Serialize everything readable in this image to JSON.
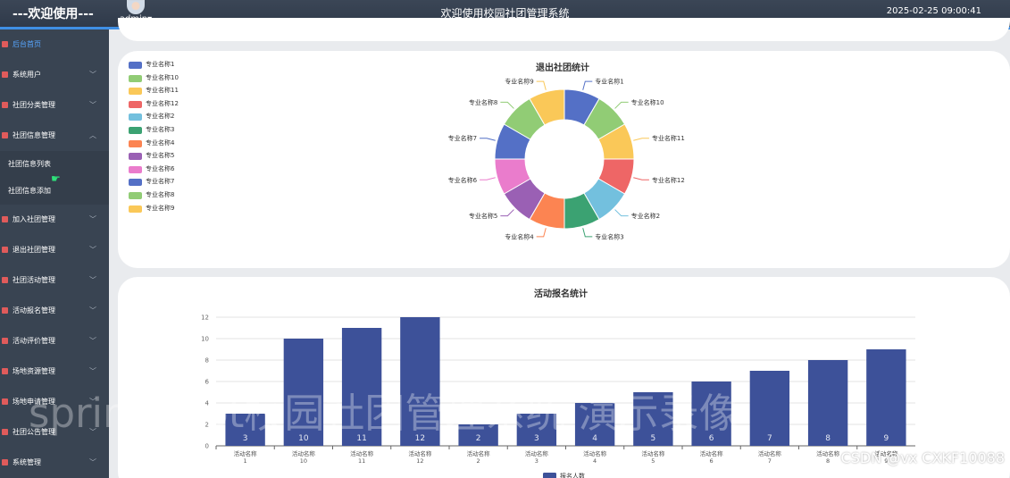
{
  "app": {
    "brand": "---欢迎使用---",
    "user": "admin",
    "title": "欢迎使用校园社团管理系统",
    "datetime": "2025-02-25 09:00:41"
  },
  "sidebar": {
    "items": [
      {
        "label": "后台首页",
        "has_children": false,
        "active": true
      },
      {
        "label": "系统用户",
        "has_children": true
      },
      {
        "label": "社团分类管理",
        "has_children": true
      },
      {
        "label": "社团信息管理",
        "has_children": true,
        "expanded": true,
        "children": [
          {
            "label": "社团信息列表"
          },
          {
            "label": "社团信息添加"
          }
        ]
      },
      {
        "label": "加入社团管理",
        "has_children": true
      },
      {
        "label": "退出社团管理",
        "has_children": true
      },
      {
        "label": "社团活动管理",
        "has_children": true
      },
      {
        "label": "活动报名管理",
        "has_children": true
      },
      {
        "label": "活动评价管理",
        "has_children": true
      },
      {
        "label": "场地资源管理",
        "has_children": true
      },
      {
        "label": "场地申请管理",
        "has_children": true
      },
      {
        "label": "社团公告管理",
        "has_children": true
      },
      {
        "label": "系统管理",
        "has_children": true
      }
    ]
  },
  "colors": {
    "palette": [
      "#5470c6",
      "#91cc75",
      "#fac858",
      "#ee6666",
      "#73c0de",
      "#3ba272",
      "#fc8452",
      "#9a60b4",
      "#ea7ccc",
      "#5470c6",
      "#91cc75",
      "#fac858"
    ],
    "bar": "#3d5199",
    "menu_icon": "#e05b5b",
    "accent": "#3f8fe5"
  },
  "chart_data": [
    {
      "type": "pie",
      "title": "退出社团统计",
      "donut": true,
      "legend_position": "top-left",
      "slices": [
        {
          "name": "专业名称1",
          "value": 1
        },
        {
          "name": "专业名称10",
          "value": 1
        },
        {
          "name": "专业名称11",
          "value": 1
        },
        {
          "name": "专业名称12",
          "value": 1
        },
        {
          "name": "专业名称2",
          "value": 1
        },
        {
          "name": "专业名称3",
          "value": 1
        },
        {
          "name": "专业名称4",
          "value": 1
        },
        {
          "name": "专业名称5",
          "value": 1
        },
        {
          "name": "专业名称6",
          "value": 1
        },
        {
          "name": "专业名称7",
          "value": 1
        },
        {
          "name": "专业名称8",
          "value": 1
        },
        {
          "name": "专业名称9",
          "value": 1
        }
      ]
    },
    {
      "type": "bar",
      "title": "活动报名统计",
      "categories": [
        [
          "活动名称",
          "1"
        ],
        [
          "活动名称",
          "10"
        ],
        [
          "活动名称",
          "11"
        ],
        [
          "活动名称",
          "12"
        ],
        [
          "活动名称",
          "2"
        ],
        [
          "活动名称",
          "3"
        ],
        [
          "活动名称",
          "4"
        ],
        [
          "活动名称",
          "5"
        ],
        [
          "活动名称",
          "6"
        ],
        [
          "活动名称",
          "7"
        ],
        [
          "活动名称",
          "8"
        ],
        [
          "活动名称",
          "9"
        ]
      ],
      "series": [
        {
          "name": "报名人数",
          "values": [
            3,
            10,
            11,
            12,
            2,
            3,
            4,
            5,
            6,
            7,
            8,
            9
          ]
        }
      ],
      "ylim": [
        0,
        12
      ],
      "yticks": [
        0,
        2,
        4,
        6,
        8,
        10,
        12
      ],
      "grid": true,
      "data_labels": true,
      "legend_position": "bottom"
    }
  ],
  "overlay": {
    "watermark": "springboot校园社团管理系统 演示录像",
    "credit": "CSDN @vx  CXKF10088"
  }
}
